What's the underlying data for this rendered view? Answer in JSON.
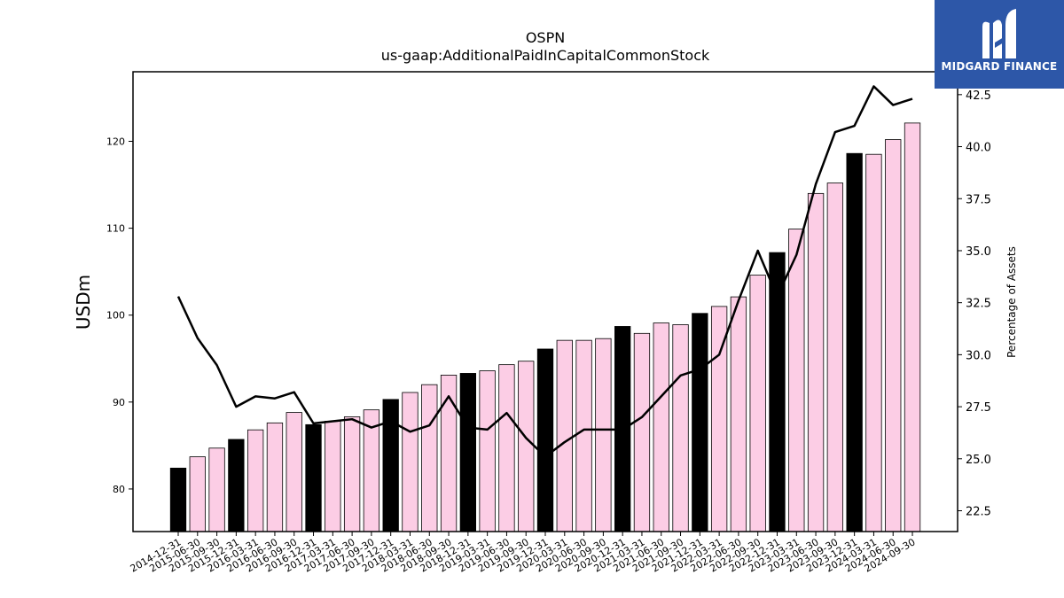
{
  "header": {
    "title": "OSPN",
    "subtitle": "us-gaap:AdditionalPaidInCapitalCommonStock"
  },
  "logo": {
    "text": "MIDGARD FINANCE",
    "background": "#2d57a8"
  },
  "chart_data": {
    "type": "bar",
    "title": "OSPN",
    "subtitle": "us-gaap:AdditionalPaidInCapitalCommonStock",
    "ylabel": "USDm",
    "y2label": "Percentage of Assets",
    "ylim": [
      75.1,
      128.0
    ],
    "y2lim": [
      21.5,
      43.6
    ],
    "yticks": [
      80,
      90,
      100,
      110,
      120
    ],
    "y2ticks": [
      22.5,
      25.0,
      27.5,
      30.0,
      32.5,
      35.0,
      37.5,
      40.0,
      42.5
    ],
    "y2tick_labels": [
      "22.5",
      "25.0",
      "27.5",
      "30.0",
      "32.5",
      "35.0",
      "37.5",
      "40.0",
      "42.5"
    ],
    "colors": {
      "year_end": "#000000",
      "quarter": "#fccde5",
      "line": "#000000"
    },
    "categories": [
      "2014-12-31",
      "2015-06-30",
      "2015-09-30",
      "2015-12-31",
      "2016-03-31",
      "2016-06-30",
      "2016-09-30",
      "2016-12-31",
      "2017-03-31",
      "2017-06-30",
      "2017-09-30",
      "2017-12-31",
      "2018-03-31",
      "2018-06-30",
      "2018-09-30",
      "2018-12-31",
      "2019-03-31",
      "2019-06-30",
      "2019-09-30",
      "2019-12-31",
      "2020-03-31",
      "2020-06-30",
      "2020-09-30",
      "2020-12-31",
      "2021-03-31",
      "2021-06-30",
      "2021-09-30",
      "2021-12-31",
      "2022-03-31",
      "2022-06-30",
      "2022-09-30",
      "2022-12-31",
      "2023-03-31",
      "2023-06-30",
      "2023-09-30",
      "2023-12-31",
      "2024-03-31",
      "2024-06-30",
      "2024-09-30"
    ],
    "series": [
      {
        "values": [
          82.4,
          83.7,
          84.7,
          85.7,
          86.8,
          87.6,
          88.8,
          87.4,
          87.8,
          88.3,
          89.1,
          90.3,
          91.1,
          92.0,
          93.1,
          93.3,
          93.6,
          94.3,
          94.7,
          96.1,
          97.1,
          97.1,
          97.3,
          98.7,
          97.9,
          99.1,
          98.9,
          100.2,
          101.0,
          102.1,
          104.6,
          107.2,
          109.9,
          114.0,
          115.2,
          118.6,
          118.5,
          120.2,
          122.1
        ]
      },
      {
        "values": [
          32.8,
          30.8,
          29.5,
          27.5,
          28.0,
          27.9,
          28.2,
          26.7,
          26.8,
          26.9,
          26.5,
          26.8,
          26.3,
          26.6,
          28.0,
          26.5,
          26.4,
          27.2,
          26.0,
          25.1,
          25.8,
          26.4,
          26.4,
          26.4,
          27.0,
          28.0,
          29.0,
          29.3,
          30.0,
          32.6,
          35.0,
          32.8,
          34.8,
          38.2,
          40.7,
          41.0,
          42.9,
          42.0,
          42.3
        ]
      }
    ]
  }
}
